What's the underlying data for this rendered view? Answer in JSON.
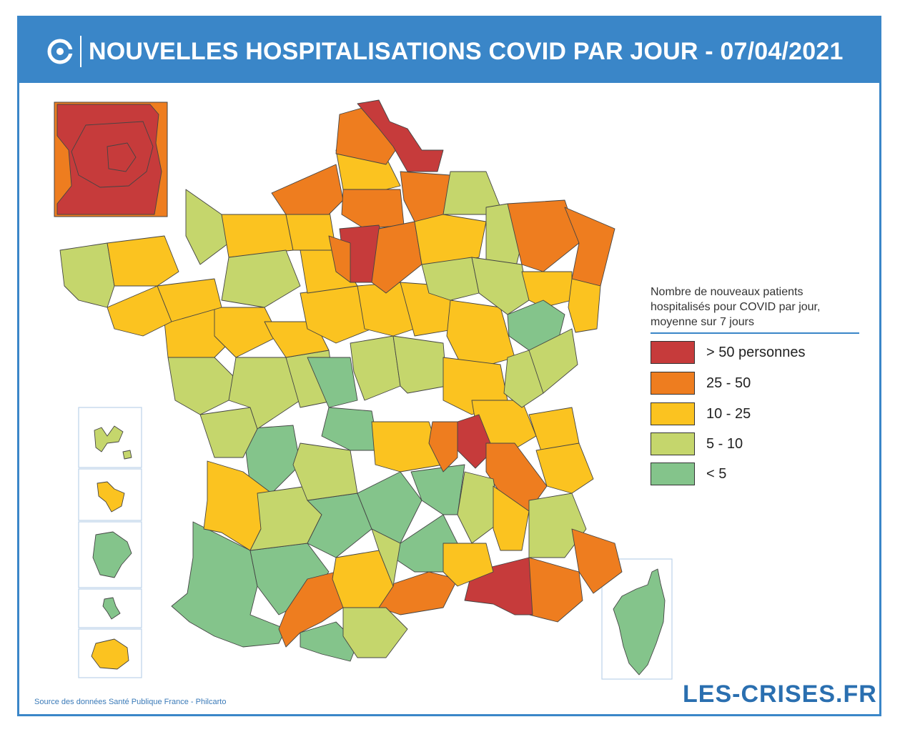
{
  "header": {
    "title": "NOUVELLES HOSPITALISATIONS COVID PAR JOUR - 07/04/2021"
  },
  "legend": {
    "title": "Nombre de nouveaux patients hospitalisés pour COVID par jour, moyenne sur 7 jours",
    "items": [
      {
        "label": "> 50 personnes",
        "color": "#c63b3b"
      },
      {
        "label": "25 - 50",
        "color": "#ee7d1f"
      },
      {
        "label": "10 - 25",
        "color": "#fbc320"
      },
      {
        "label": "5 - 10",
        "color": "#c5d66c"
      },
      {
        "label": "< 5",
        "color": "#84c48b"
      }
    ]
  },
  "source": "Source des données Santé Publique France - Philcarto",
  "brand": "LES-CRISES.FR",
  "colors": {
    "accent": "#3a86c8",
    "very_high": "#c63b3b",
    "high": "#ee7d1f",
    "medium": "#fbc320",
    "low": "#c5d66c",
    "very_low": "#84c48b"
  }
}
